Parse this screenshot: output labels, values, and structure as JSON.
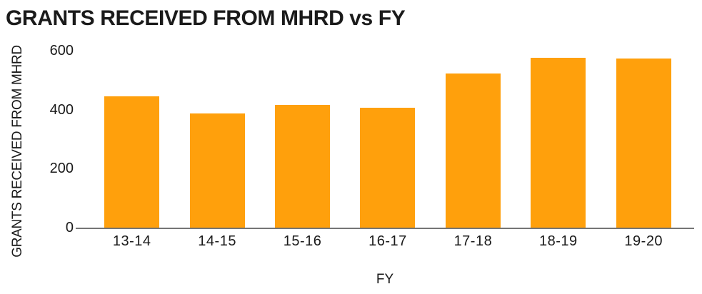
{
  "chart_data": {
    "type": "bar",
    "title": "GRANTS RECEIVED FROM MHRD vs FY",
    "xlabel": "FY",
    "ylabel": "GRANTS RECEIVED FROM MHRD",
    "categories": [
      "13-14",
      "14-15",
      "15-16",
      "16-17",
      "17-18",
      "18-19",
      "19-20"
    ],
    "values": [
      445,
      388,
      416,
      406,
      523,
      577,
      573
    ],
    "yticks": [
      0,
      200,
      400,
      600
    ],
    "ylim": [
      0,
      600
    ],
    "grid": false,
    "legend": "none",
    "colors": {
      "bar": "#FFA00C",
      "axis_line": "#757575",
      "text": "#1A1A1A",
      "background": "#FFFFFF"
    }
  }
}
